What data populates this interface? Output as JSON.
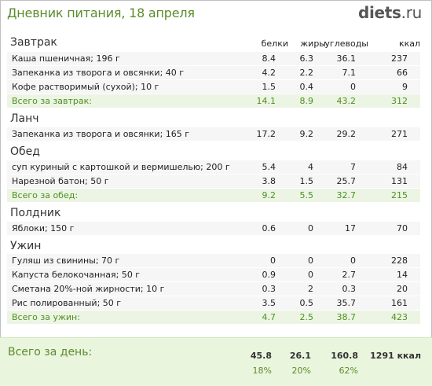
{
  "header": {
    "title": "Дневник питания, 18 апреля",
    "logo_main": "diets",
    "logo_tld": ".ru"
  },
  "columns": [
    "белки",
    "жиры",
    "углеводы",
    "ккал"
  ],
  "meals": [
    {
      "name": "Завтрак",
      "items": [
        {
          "name": "Каша пшеничная; 196 г",
          "p": "8.4",
          "f": "6.3",
          "c": "36.1",
          "k": "237"
        },
        {
          "name": "Запеканка из творога и овсянки; 40 г",
          "p": "4.2",
          "f": "2.2",
          "c": "7.1",
          "k": "66"
        },
        {
          "name": "Кофе растворимый (сухой); 10 г",
          "p": "1.5",
          "f": "0.4",
          "c": "0",
          "k": "9"
        }
      ],
      "total": {
        "label": "Всего за завтрак:",
        "p": "14.1",
        "f": "8.9",
        "c": "43.2",
        "k": "312"
      }
    },
    {
      "name": "Ланч",
      "items": [
        {
          "name": "Запеканка из творога и овсянки; 165 г",
          "p": "17.2",
          "f": "9.2",
          "c": "29.2",
          "k": "271"
        }
      ]
    },
    {
      "name": "Обед",
      "items": [
        {
          "name": "суп куриный с картошкой и вермишелью; 200 г",
          "p": "5.4",
          "f": "4",
          "c": "7",
          "k": "84"
        },
        {
          "name": "Нарезной батон; 50 г",
          "p": "3.8",
          "f": "1.5",
          "c": "25.7",
          "k": "131"
        }
      ],
      "total": {
        "label": "Всего за обед:",
        "p": "9.2",
        "f": "5.5",
        "c": "32.7",
        "k": "215"
      }
    },
    {
      "name": "Полдник",
      "items": [
        {
          "name": "Яблоки; 150 г",
          "p": "0.6",
          "f": "0",
          "c": "17",
          "k": "70"
        }
      ]
    },
    {
      "name": "Ужин",
      "items": [
        {
          "name": "Гуляш из свинины; 70 г",
          "p": "0",
          "f": "0",
          "c": "0",
          "k": "228"
        },
        {
          "name": "Капуста белокочанная; 50 г",
          "p": "0.9",
          "f": "0",
          "c": "2.7",
          "k": "14"
        },
        {
          "name": "Сметана 20%-ной жирности; 10 г",
          "p": "0.3",
          "f": "2",
          "c": "0.3",
          "k": "20"
        },
        {
          "name": "Рис полированный; 50 г",
          "p": "3.5",
          "f": "0.5",
          "c": "35.7",
          "k": "161"
        }
      ],
      "total": {
        "label": "Всего за ужин:",
        "p": "4.7",
        "f": "2.5",
        "c": "38.7",
        "k": "423"
      }
    }
  ],
  "day_total": {
    "label": "Всего за день:",
    "p": "45.8",
    "f": "26.1",
    "c": "160.8",
    "k": "1291 ккал",
    "p_pct": "18%",
    "f_pct": "20%",
    "c_pct": "62%"
  },
  "colors": {
    "accent": "#5a8c2a",
    "total_bg": "#ecf5e3",
    "row_bg": "#f6f6f6"
  }
}
